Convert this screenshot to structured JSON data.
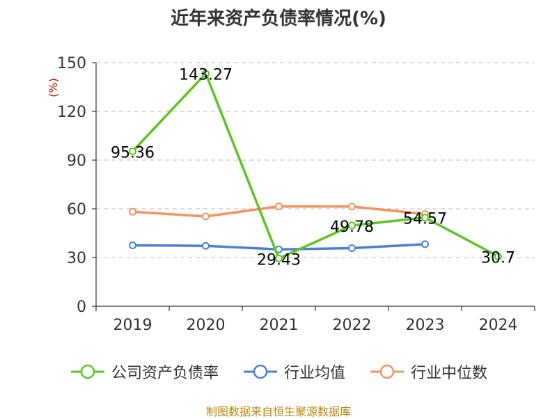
{
  "title": "近年来资产负债率情况(%)",
  "source_note": "制图数据来自恒生聚源数据库",
  "chart_data": {
    "type": "line",
    "title": "近年来资产负债率情况(%)",
    "ylabel": "(%)",
    "ylim": [
      0,
      150
    ],
    "yticks": [
      0,
      30,
      60,
      90,
      120,
      150
    ],
    "grid": true,
    "legend_position": "bottom",
    "categories": [
      "2019",
      "2020",
      "2021",
      "2022",
      "2023",
      "2024"
    ],
    "series": [
      {
        "name": "公司资产负债率",
        "color": "#5cc522",
        "values": [
          95.36,
          143.27,
          29.43,
          49.78,
          54.57,
          30.7
        ],
        "labels": [
          "95.36",
          "143.27",
          "29.43",
          "49.78",
          "54.57",
          "30.7"
        ]
      },
      {
        "name": "行业均值",
        "color": "#4a7fd8",
        "values": [
          37.5,
          37.2,
          35.0,
          35.8,
          38.2,
          null
        ]
      },
      {
        "name": "行业中位数",
        "color": "#f7915e",
        "values": [
          58.2,
          55.3,
          61.5,
          61.4,
          56.8,
          null
        ]
      }
    ]
  },
  "legend": {
    "item0": "公司资产负债率",
    "item1": "行业均值",
    "item2": "行业中位数"
  },
  "colors": {
    "company": "#5cc522",
    "industry_avg": "#4a7fd8",
    "industry_median": "#f7915e",
    "ylabel": "#cc0000",
    "source": "#b8860b"
  }
}
